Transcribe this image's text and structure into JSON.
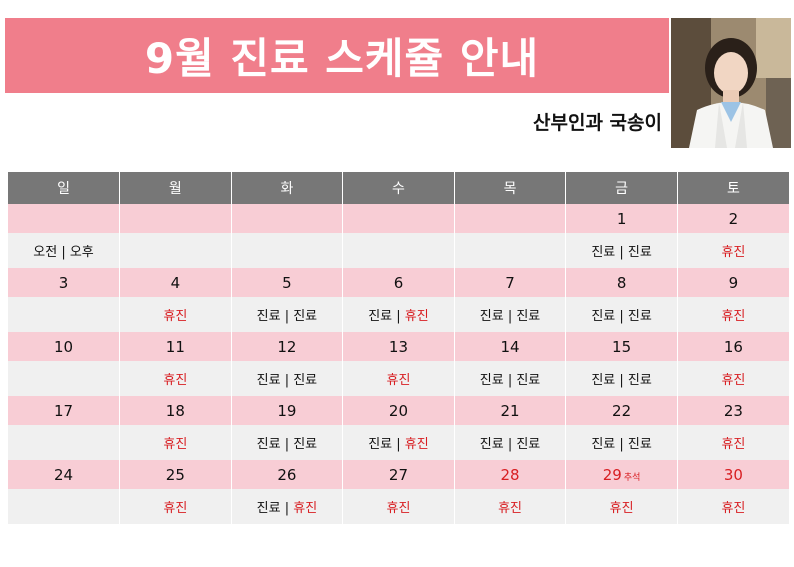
{
  "header": {
    "title": "9월 진료 스케쥴 안내",
    "doctor": "산부인과 국송이"
  },
  "colors": {
    "banner": "#f07e8b",
    "header_row": "#777777",
    "date_row": "#f8cdd5",
    "status_row": "#f0f0f0",
    "closed_text": "#d81e22"
  },
  "weekdays": [
    "일",
    "월",
    "화",
    "수",
    "목",
    "금",
    "토"
  ],
  "weeks": [
    {
      "dates": [
        "",
        "",
        "",
        "",
        "",
        "1",
        "2"
      ],
      "status": [
        "오전 | 오후",
        "",
        "",
        "",
        "",
        "진료 | 진료",
        "휴진"
      ]
    },
    {
      "dates": [
        "3",
        "4",
        "5",
        "6",
        "7",
        "8",
        "9"
      ],
      "status": [
        "",
        "휴진",
        "진료 | 진료",
        "진료 | 휴진",
        "진료 | 진료",
        "진료 | 진료",
        "휴진"
      ]
    },
    {
      "dates": [
        "10",
        "11",
        "12",
        "13",
        "14",
        "15",
        "16"
      ],
      "status": [
        "",
        "휴진",
        "진료 | 진료",
        "휴진",
        "진료 | 진료",
        "진료 | 진료",
        "휴진"
      ]
    },
    {
      "dates": [
        "17",
        "18",
        "19",
        "20",
        "21",
        "22",
        "23"
      ],
      "status": [
        "",
        "휴진",
        "진료 | 진료",
        "진료 | 휴진",
        "진료 | 진료",
        "진료 | 진료",
        "휴진"
      ]
    },
    {
      "dates": [
        "24",
        "25",
        "26",
        "27",
        "28",
        "29",
        "30"
      ],
      "holiday_note": "추석",
      "status": [
        "",
        "휴진",
        "진료 | 휴진",
        "휴진",
        "휴진",
        "휴진",
        "휴진"
      ]
    }
  ]
}
